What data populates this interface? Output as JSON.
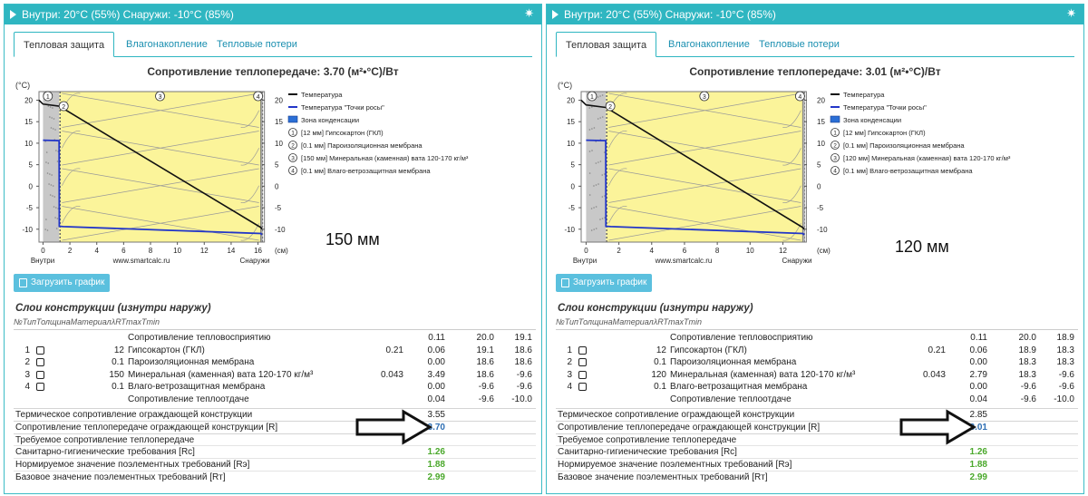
{
  "panels": [
    {
      "header": "Внутри: 20°C (55%) Снаружи: -10°C (85%)",
      "tabs": [
        "Тепловая защита",
        "Влагонакопление",
        "Тепловые потери"
      ],
      "chart_title": "Сопротивление теплопередаче: 3.70 (м²•°C)/Вт",
      "annotation": "150 мм",
      "chart_data": {
        "type": "line",
        "title": "Сопротивление теплопередаче: 3.70 (м²•°C)/Вт",
        "ylabel": "(°C)",
        "xlabel": "(см)",
        "x_ticks": [
          "0",
          "2",
          "4",
          "6",
          "8",
          "10",
          "12",
          "14",
          "16"
        ],
        "y_ticks": [
          "20",
          "15",
          "10",
          "5",
          "0",
          "-5",
          "-10"
        ],
        "xlim": [
          -0.3,
          16.3
        ],
        "ylim": [
          -13,
          22
        ],
        "x_caption_left": "Внутри",
        "x_caption_center": "www.smartcalc.ru",
        "x_caption_right": "Снаружи",
        "layer_bounds": [
          0,
          1.2,
          1.21,
          16.21,
          16.22
        ],
        "series": [
          {
            "name": "Температура",
            "color": "#111111",
            "x": [
              -0.3,
              0,
              1.2,
              1.21,
              16.21,
              16.3
            ],
            "y": [
              20,
              19.1,
              18.6,
              18.6,
              -9.6,
              -10
            ]
          },
          {
            "name": "Температура \"Точки росы\"",
            "color": "#2236c8",
            "x": [
              0,
              1.2,
              1.21,
              1.5,
              16.21,
              16.3
            ],
            "y": [
              10.7,
              10.6,
              -9.3,
              -9.4,
              -11.0,
              -11.3
            ]
          }
        ],
        "legend": [
          {
            "label": "Температура",
            "kind": "line",
            "color": "#111111"
          },
          {
            "label": "Температура \"Точки росы\"",
            "kind": "line",
            "color": "#2236c8"
          },
          {
            "label": "Зона конденсации",
            "kind": "box",
            "color": "#2b6fd6"
          },
          {
            "label": "[12 мм] Гипсокартон (ГКЛ)",
            "kind": "num",
            "num": "1"
          },
          {
            "label": "[0.1 мм] Пароизоляционная мембрана",
            "kind": "num",
            "num": "2"
          },
          {
            "label": "[150 мм] Минеральная (каменная) вата 120-170 кг/м³",
            "kind": "num",
            "num": "3"
          },
          {
            "label": "[0.1 мм] Влаго-ветрозащитная мембрана",
            "kind": "num",
            "num": "4"
          }
        ],
        "layer_markers": [
          "1",
          "2",
          "3",
          "4"
        ]
      },
      "load_button": "Загрузить график",
      "layers_title": "Слои конструкции (изнутри наружу)",
      "table_headers": [
        "№",
        "Тип",
        "Толщина",
        "Материал",
        "λ",
        "R",
        "Tmax",
        "Tmin"
      ],
      "rows": [
        {
          "num": "",
          "check": false,
          "thick": "",
          "mat": "Сопротивление тепловосприятию",
          "lam": "",
          "R": "0.11",
          "tmax": "20.0",
          "tmin": "19.1"
        },
        {
          "num": "1",
          "check": true,
          "thick": "12",
          "mat": "Гипсокартон (ГКЛ)",
          "lam": "0.21",
          "R": "0.06",
          "tmax": "19.1",
          "tmin": "18.6"
        },
        {
          "num": "2",
          "check": true,
          "thick": "0.1",
          "mat": "Пароизоляционная мембрана",
          "lam": "",
          "R": "0.00",
          "tmax": "18.6",
          "tmin": "18.6"
        },
        {
          "num": "3",
          "check": true,
          "thick": "150",
          "mat": "Минеральная (каменная) вата 120-170 кг/м³",
          "lam": "0.043",
          "R": "3.49",
          "tmax": "18.6",
          "tmin": "-9.6"
        },
        {
          "num": "4",
          "check": true,
          "thick": "0.1",
          "mat": "Влаго-ветрозащитная мембрана",
          "lam": "",
          "R": "0.00",
          "tmax": "-9.6",
          "tmin": "-9.6"
        },
        {
          "num": "",
          "check": false,
          "thick": "",
          "mat": "Сопротивление теплоотдаче",
          "lam": "",
          "R": "0.04",
          "tmax": "-9.6",
          "tmin": "-10.0"
        }
      ],
      "summary": [
        {
          "label": "Термическое сопротивление ограждающей конструкции",
          "value": "3.55",
          "style": "plain"
        },
        {
          "label": "Сопротивление теплопередаче ограждающей конструкции [R]",
          "value": "3.70",
          "style": "hl"
        },
        {
          "label": "Требуемое сопротивление теплопередаче",
          "value": "",
          "style": "plain"
        },
        {
          "label": "Санитарно-гигиенические требования [Rc]",
          "value": "1.26",
          "style": "green"
        },
        {
          "label": "Нормируемое значение поэлементных требований [Rэ]",
          "value": "1.88",
          "style": "green"
        },
        {
          "label": "Базовое значение поэлементных требований [Rт]",
          "value": "2.99",
          "style": "green"
        }
      ]
    },
    {
      "header": "Внутри: 20°C (55%) Снаружи: -10°C (85%)",
      "tabs": [
        "Тепловая защита",
        "Влагонакопление",
        "Тепловые потери"
      ],
      "chart_title": "Сопротивление теплопередаче: 3.01 (м²•°C)/Вт",
      "annotation": "120 мм",
      "chart_data": {
        "type": "line",
        "title": "Сопротивление теплопередаче: 3.01 (м²•°C)/Вт",
        "ylabel": "(°C)",
        "xlabel": "(см)",
        "x_ticks": [
          "0",
          "2",
          "4",
          "6",
          "8",
          "10",
          "12"
        ],
        "y_ticks": [
          "20",
          "15",
          "10",
          "5",
          "0",
          "-5",
          "-10"
        ],
        "xlim": [
          -0.3,
          13.3
        ],
        "ylim": [
          -13,
          22
        ],
        "x_caption_left": "Внутри",
        "x_caption_center": "www.smartcalc.ru",
        "x_caption_right": "Снаружи",
        "layer_bounds": [
          0,
          1.2,
          1.21,
          13.21,
          13.22
        ],
        "series": [
          {
            "name": "Температура",
            "color": "#111111",
            "x": [
              -0.3,
              0,
              1.2,
              1.21,
              13.21,
              13.3
            ],
            "y": [
              20,
              18.9,
              18.3,
              18.3,
              -9.6,
              -10
            ]
          },
          {
            "name": "Температура \"Точки росы\"",
            "color": "#2236c8",
            "x": [
              0,
              1.2,
              1.21,
              1.5,
              13.21,
              13.3
            ],
            "y": [
              10.7,
              10.6,
              -9.3,
              -9.4,
              -11.0,
              -11.3
            ]
          }
        ],
        "legend": [
          {
            "label": "Температура",
            "kind": "line",
            "color": "#111111"
          },
          {
            "label": "Температура \"Точки росы\"",
            "kind": "line",
            "color": "#2236c8"
          },
          {
            "label": "Зона конденсации",
            "kind": "box",
            "color": "#2b6fd6"
          },
          {
            "label": "[12 мм] Гипсокартон (ГКЛ)",
            "kind": "num",
            "num": "1"
          },
          {
            "label": "[0.1 мм] Пароизоляционная мембрана",
            "kind": "num",
            "num": "2"
          },
          {
            "label": "[120 мм] Минеральная (каменная) вата 120-170 кг/м³",
            "kind": "num",
            "num": "3"
          },
          {
            "label": "[0.1 мм] Влаго-ветрозащитная мембрана",
            "kind": "num",
            "num": "4"
          }
        ],
        "layer_markers": [
          "1",
          "2",
          "3",
          "4"
        ]
      },
      "load_button": "Загрузить график",
      "layers_title": "Слои конструкции (изнутри наружу)",
      "table_headers": [
        "№",
        "Тип",
        "Толщина",
        "Материал",
        "λ",
        "R",
        "Tmax",
        "Tmin"
      ],
      "rows": [
        {
          "num": "",
          "check": false,
          "thick": "",
          "mat": "Сопротивление тепловосприятию",
          "lam": "",
          "R": "0.11",
          "tmax": "20.0",
          "tmin": "18.9"
        },
        {
          "num": "1",
          "check": true,
          "thick": "12",
          "mat": "Гипсокартон (ГКЛ)",
          "lam": "0.21",
          "R": "0.06",
          "tmax": "18.9",
          "tmin": "18.3"
        },
        {
          "num": "2",
          "check": true,
          "thick": "0.1",
          "mat": "Пароизоляционная мембрана",
          "lam": "",
          "R": "0.00",
          "tmax": "18.3",
          "tmin": "18.3"
        },
        {
          "num": "3",
          "check": true,
          "thick": "120",
          "mat": "Минеральная (каменная) вата 120-170 кг/м³",
          "lam": "0.043",
          "R": "2.79",
          "tmax": "18.3",
          "tmin": "-9.6"
        },
        {
          "num": "4",
          "check": true,
          "thick": "0.1",
          "mat": "Влаго-ветрозащитная мембрана",
          "lam": "",
          "R": "0.00",
          "tmax": "-9.6",
          "tmin": "-9.6"
        },
        {
          "num": "",
          "check": false,
          "thick": "",
          "mat": "Сопротивление теплоотдаче",
          "lam": "",
          "R": "0.04",
          "tmax": "-9.6",
          "tmin": "-10.0"
        }
      ],
      "summary": [
        {
          "label": "Термическое сопротивление ограждающей конструкции",
          "value": "2.85",
          "style": "plain"
        },
        {
          "label": "Сопротивление теплопередаче ограждающей конструкции [R]",
          "value": "3.01",
          "style": "hl"
        },
        {
          "label": "Требуемое сопротивление теплопередаче",
          "value": "",
          "style": "plain"
        },
        {
          "label": "Санитарно-гигиенические требования [Rc]",
          "value": "1.26",
          "style": "green"
        },
        {
          "label": "Нормируемое значение поэлементных требований [Rэ]",
          "value": "1.88",
          "style": "green"
        },
        {
          "label": "Базовое значение поэлементных требований [Rт]",
          "value": "2.99",
          "style": "green"
        }
      ]
    }
  ],
  "colors": {
    "accent": "#2fb6c1",
    "insulation": "#fbf49a",
    "gypsum": "#c8c8c8",
    "button": "#5bc0de",
    "highlight": "#2f6fb4",
    "green": "#4aa82b"
  }
}
